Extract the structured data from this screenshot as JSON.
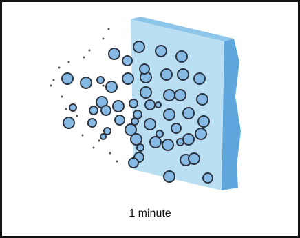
{
  "caption": "1 minute"
}
